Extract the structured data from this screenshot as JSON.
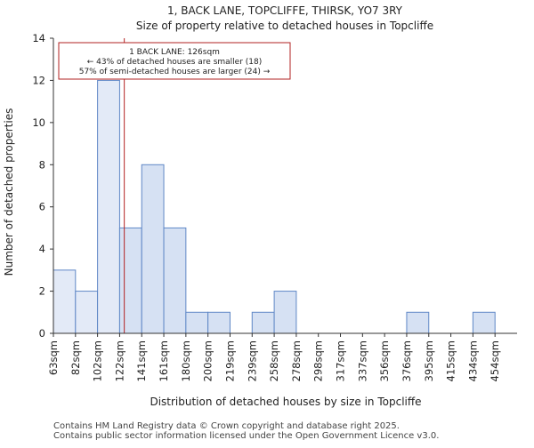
{
  "chart_data": {
    "type": "bar",
    "title": "1, BACK LANE, TOPCLIFFE, THIRSK, YO7 3RY",
    "subtitle": "Size of property relative to detached houses in Topcliffe",
    "xlabel": "Distribution of detached houses by size in Topcliffe",
    "ylabel": "Number of detached properties",
    "categories": [
      "63sqm",
      "82sqm",
      "102sqm",
      "122sqm",
      "141sqm",
      "161sqm",
      "180sqm",
      "200sqm",
      "219sqm",
      "239sqm",
      "258sqm",
      "278sqm",
      "298sqm",
      "317sqm",
      "337sqm",
      "356sqm",
      "376sqm",
      "395sqm",
      "415sqm",
      "434sqm",
      "454sqm"
    ],
    "values": [
      3,
      2,
      12,
      5,
      8,
      5,
      1,
      1,
      0,
      1,
      2,
      0,
      0,
      0,
      0,
      0,
      1,
      0,
      0,
      1,
      0
    ],
    "ylim": [
      0,
      14
    ],
    "yticks": [
      0,
      2,
      4,
      6,
      8,
      10,
      12,
      14
    ],
    "grid": false,
    "highlight_bins": [
      0,
      1,
      2
    ],
    "colors": {
      "bar_fill": "#d6e1f3",
      "bar_fill_highlight": "#e3eaf7",
      "bar_stroke": "#5f87c6",
      "marker": "#b22222",
      "annotation_border": "#b22222"
    },
    "marker": {
      "x_value": 126
    },
    "annotation": {
      "line1": "1 BACK LANE: 126sqm",
      "line2": "← 43% of detached houses are smaller (18)",
      "line3": "57% of semi-detached houses are larger (24) →"
    }
  },
  "footer": {
    "line1": "Contains HM Land Registry data © Crown copyright and database right 2025.",
    "line2": "Contains public sector information licensed under the Open Government Licence v3.0."
  }
}
